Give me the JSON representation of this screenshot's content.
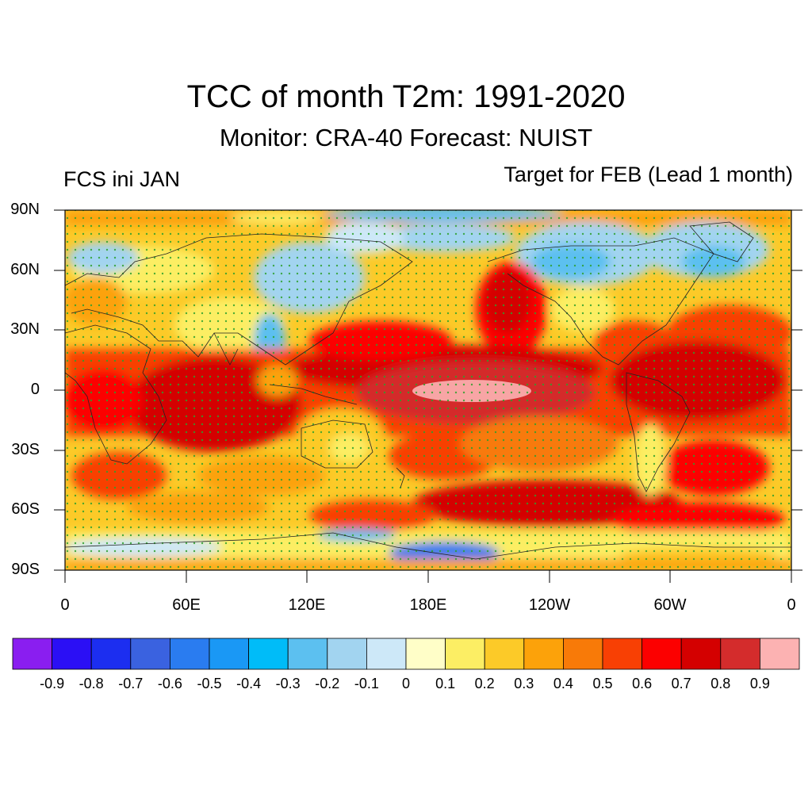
{
  "title": "TCC of month T2m: 1991-2020",
  "subtitle": "Monitor: CRA-40   Forecast: NUIST",
  "left_label": "FCS ini JAN",
  "right_label": "Target for FEB (Lead 1 month)",
  "map": {
    "projection": "cylindrical equidistant",
    "lon_range": [
      0,
      360
    ],
    "lat_range": [
      -90,
      90
    ],
    "y_ticks": [
      "90N",
      "60N",
      "30N",
      "0",
      "30S",
      "60S",
      "90S"
    ],
    "x_ticks": [
      "0",
      "60E",
      "120E",
      "180E",
      "120W",
      "60W",
      "0"
    ],
    "stipple_color": "#2ca02c",
    "stipple_meaning": "significant",
    "regions": [
      {
        "name": "equatorial-pacific",
        "value": 0.9
      },
      {
        "name": "tropics",
        "value": 0.7
      },
      {
        "name": "north-pacific",
        "value": 0.7
      },
      {
        "name": "southern-ocean",
        "value": 0.7
      },
      {
        "name": "north-america",
        "value": -0.3
      },
      {
        "name": "siberia",
        "value": -0.3
      },
      {
        "name": "antarctica",
        "value": -0.5
      },
      {
        "name": "arctic",
        "value": -0.2
      }
    ]
  },
  "colorbar": {
    "colors": [
      "#8a1ef0",
      "#2b0ff5",
      "#1c2ef0",
      "#3a62e0",
      "#2a7cf0",
      "#1a98f5",
      "#00bcf8",
      "#5cc0f0",
      "#a2d4f0",
      "#cde8f8",
      "#fffec8",
      "#fcee64",
      "#fcca28",
      "#fca20a",
      "#f87a08",
      "#f84004",
      "#fc0000",
      "#d40000",
      "#d42c2c",
      "#fcb2b2"
    ],
    "labels": [
      "-0.9",
      "-0.8",
      "-0.7",
      "-0.6",
      "-0.5",
      "-0.4",
      "-0.3",
      "-0.2",
      "-0.1",
      "0",
      "0.1",
      "0.2",
      "0.3",
      "0.4",
      "0.5",
      "0.6",
      "0.7",
      "0.8",
      "0.9"
    ]
  }
}
